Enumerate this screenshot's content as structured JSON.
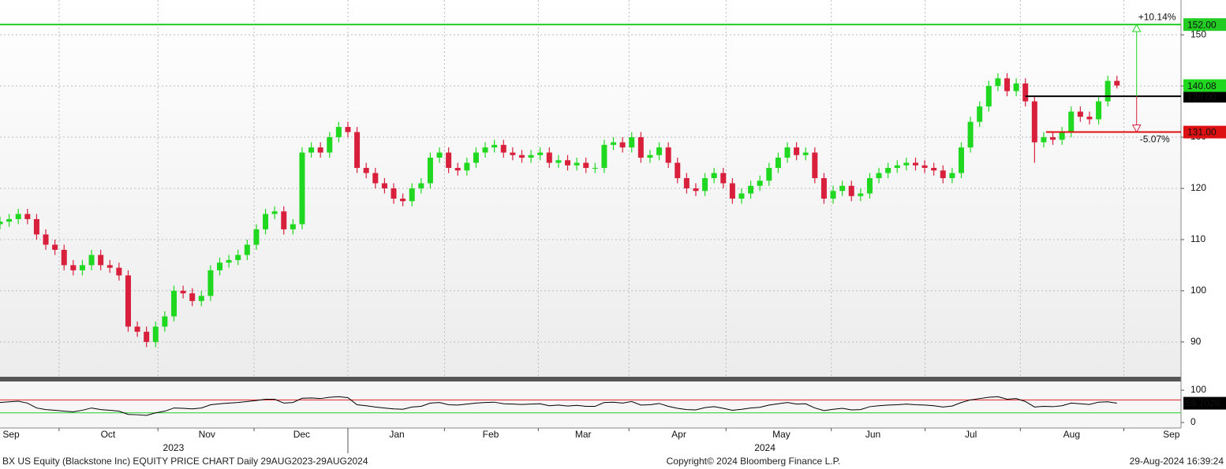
{
  "chart_data": [
    {
      "type": "candlestick",
      "x": [
        0,
        2,
        4,
        6,
        8,
        10,
        12,
        14,
        16,
        18,
        20,
        22,
        24,
        26,
        28,
        30,
        32,
        34,
        36,
        38,
        40,
        42,
        44,
        46,
        48,
        50,
        52,
        54,
        56,
        58,
        60,
        62,
        64,
        66,
        68,
        70,
        72,
        74,
        76,
        78,
        80,
        82,
        84,
        86,
        88,
        90,
        92,
        94,
        96,
        98,
        100,
        102,
        104,
        106,
        108,
        110,
        112,
        114,
        116,
        118,
        120,
        122,
        124,
        126,
        128,
        130,
        132,
        134,
        136,
        138,
        140,
        142,
        144,
        146,
        148,
        150,
        152,
        154,
        156,
        158,
        160,
        162,
        164,
        166,
        168,
        170,
        172,
        174,
        176,
        178,
        180,
        182,
        184,
        186,
        188,
        190,
        192,
        194,
        196,
        198,
        200,
        202,
        204,
        206,
        208,
        210,
        212,
        214,
        216,
        218,
        220,
        222,
        224,
        226,
        228,
        230,
        232,
        234,
        236,
        238,
        240,
        242,
        244
      ],
      "open": [
        113,
        113.5,
        114,
        115,
        114,
        111,
        109,
        108,
        105,
        104,
        105,
        107,
        105,
        104.5,
        103,
        93,
        92,
        90,
        93,
        95,
        100,
        99.5,
        98,
        99,
        104,
        105.5,
        106,
        107,
        109,
        112,
        115,
        115.5,
        112,
        113,
        127,
        128,
        127,
        130,
        132,
        131,
        124,
        123,
        121,
        120,
        118,
        117.5,
        120,
        121,
        126,
        127,
        124,
        123.5,
        125,
        127,
        128,
        128.5,
        127,
        126.5,
        126,
        126.5,
        127,
        125,
        125.5,
        124.5,
        125,
        124,
        124,
        128.5,
        129,
        128,
        130,
        126,
        126.5,
        128,
        125,
        122,
        120,
        119.5,
        122,
        123,
        121,
        118,
        119,
        120.5,
        121.5,
        124,
        126,
        128,
        126.5,
        127,
        122,
        118,
        119.5,
        120.5,
        118.5,
        119,
        122,
        123,
        124,
        124.5,
        125,
        124.5,
        124,
        123.5,
        122,
        123,
        128,
        133,
        136,
        140,
        141.5,
        139,
        140.5,
        137,
        129,
        130,
        129.5,
        131,
        135,
        134,
        133.5,
        137,
        141
      ],
      "high": [
        114.5,
        115,
        116,
        116,
        115,
        112,
        110,
        109,
        106,
        106,
        108,
        108,
        106,
        105.5,
        104,
        94,
        93,
        94,
        96,
        101,
        101,
        100.5,
        100,
        105,
        106.5,
        107,
        108,
        110,
        113,
        116,
        116.5,
        116.5,
        114,
        128,
        129,
        129,
        131,
        133,
        133,
        132,
        125,
        124,
        122,
        121,
        119,
        121,
        122,
        127,
        128,
        128,
        125,
        126,
        128,
        129,
        129.5,
        129.5,
        128,
        127.5,
        127.5,
        128,
        128,
        126.5,
        126.5,
        126,
        126,
        125,
        129.5,
        130,
        130,
        131,
        131,
        127.5,
        129,
        129,
        126,
        123,
        121,
        123,
        124,
        124,
        122,
        120,
        121.5,
        122.5,
        125,
        127,
        129,
        129,
        128,
        128,
        123,
        120.5,
        121.5,
        121.5,
        120,
        123,
        124,
        125,
        125.5,
        126,
        126,
        125.5,
        125,
        124.5,
        124,
        129,
        134,
        137,
        141,
        142.5,
        142.5,
        141.5,
        141.5,
        138,
        131,
        131,
        132,
        136,
        136,
        135,
        138,
        142,
        142
      ],
      "low": [
        112,
        112.5,
        113,
        113,
        110,
        108,
        107,
        104,
        103,
        103,
        104,
        104,
        103.5,
        102,
        92,
        91,
        89,
        89,
        92,
        94,
        98.5,
        97,
        97,
        98,
        103,
        104.5,
        105,
        106,
        108,
        111,
        114,
        111,
        111,
        112,
        126,
        126,
        126,
        129,
        130,
        123,
        122,
        120,
        119,
        117,
        116.5,
        116.5,
        119,
        120,
        125,
        123,
        122.5,
        122.5,
        124,
        126,
        127,
        126,
        125.5,
        125,
        125,
        125.5,
        124,
        124,
        123.5,
        123.5,
        123,
        123,
        123,
        127.5,
        127,
        127,
        125,
        125,
        125.5,
        124,
        121,
        119,
        118.5,
        118.5,
        121,
        120,
        117,
        117,
        118,
        119.5,
        120.5,
        123,
        125,
        125.5,
        125.5,
        121,
        117,
        117,
        118.5,
        117.5,
        117.5,
        118,
        121,
        122,
        123,
        123.5,
        123.5,
        123,
        122.5,
        121,
        121,
        122,
        127,
        132,
        135,
        139,
        138,
        138,
        136,
        125,
        128,
        128.5,
        128.5,
        130,
        133,
        132.5,
        132.5,
        136,
        139.5
      ],
      "close": [
        113.5,
        114,
        115,
        114,
        111,
        109,
        108,
        105,
        104,
        105,
        107,
        105,
        104.5,
        103,
        93,
        92,
        90,
        93,
        95,
        100,
        99.5,
        98,
        99,
        104,
        105.5,
        106,
        107,
        109,
        112,
        115,
        115.5,
        112,
        113,
        127,
        128,
        127,
        130,
        132,
        131,
        124,
        123,
        121,
        120,
        118,
        117.5,
        120,
        121,
        126,
        127,
        124,
        123.5,
        125,
        127,
        128,
        128.5,
        127,
        126.5,
        126,
        126.5,
        127,
        125,
        125.5,
        124.5,
        125,
        124,
        124,
        128.5,
        129,
        128,
        130,
        126,
        126.5,
        128,
        125,
        122,
        120,
        119.5,
        122,
        123,
        121,
        118,
        119,
        120.5,
        121.5,
        124,
        126,
        128,
        126.5,
        127,
        122,
        118,
        119.5,
        120.5,
        118.5,
        119,
        122,
        123,
        124,
        124.5,
        125,
        124.5,
        124,
        123.5,
        122,
        123,
        128,
        133,
        136,
        140,
        141.5,
        139,
        140.5,
        137,
        129,
        130,
        129.5,
        131,
        135,
        134,
        133.5,
        137,
        141,
        140.08
      ],
      "up_color": "#1fd81f",
      "down_color": "#d8203c",
      "xlim": [
        0,
        258
      ],
      "ylim": [
        83.2,
        156.8
      ],
      "yticks": [
        90,
        100,
        110,
        120,
        130,
        140,
        150
      ],
      "xticks": [
        {
          "value": 2.4,
          "label": "Sep"
        },
        {
          "value": 23.6,
          "label": "Oct"
        },
        {
          "value": 45.2,
          "label": "Nov"
        },
        {
          "value": 65.9,
          "label": "Dec"
        },
        {
          "value": 86.7,
          "label": "Jan"
        },
        {
          "value": 107.2,
          "label": "Feb"
        },
        {
          "value": 127.4,
          "label": "Mar"
        },
        {
          "value": 148.3,
          "label": "Apr"
        },
        {
          "value": 170.7,
          "label": "May"
        },
        {
          "value": 190.7,
          "label": "Jun"
        },
        {
          "value": 212.1,
          "label": "Jul"
        },
        {
          "value": 234.1,
          "label": "Aug"
        },
        {
          "value": 255.9,
          "label": "Sep"
        }
      ],
      "xgrid": [
        12.9,
        34.5,
        55.5,
        76,
        97.1,
        117.6,
        137.4,
        158.6,
        181.6,
        202.1,
        222.9,
        245.5
      ],
      "years": [
        {
          "value": 37.9,
          "label": "2023"
        },
        {
          "value": 167.1,
          "label": "2024"
        }
      ],
      "year_break": 76,
      "grid": true,
      "levels": [
        {
          "value": 152,
          "label": "152.00",
          "color": "#22cc22",
          "from_x": 0
        },
        {
          "value": 138,
          "label": "138.00",
          "color": "#000000",
          "from_x": 224
        },
        {
          "value": 131,
          "label": "131.00",
          "color": "#dd1111",
          "from_x": 228.5
        }
      ],
      "last_price": {
        "value": 140.08,
        "label": "140.08"
      },
      "range_arrow": {
        "x": 248.3,
        "from": 138,
        "up_to": 152,
        "down_to": 131,
        "up_label": "+10.14%",
        "down_label": "-5.07%"
      }
    },
    {
      "type": "line",
      "x": [
        0,
        2,
        4,
        6,
        8,
        10,
        12,
        14,
        16,
        18,
        20,
        22,
        24,
        26,
        28,
        30,
        32,
        34,
        36,
        38,
        40,
        42,
        44,
        46,
        48,
        50,
        52,
        54,
        56,
        58,
        60,
        62,
        64,
        66,
        68,
        70,
        72,
        74,
        76,
        78,
        80,
        82,
        84,
        86,
        88,
        90,
        92,
        94,
        96,
        98,
        100,
        102,
        104,
        106,
        108,
        110,
        112,
        114,
        116,
        118,
        120,
        122,
        124,
        126,
        128,
        130,
        132,
        134,
        136,
        138,
        140,
        142,
        144,
        146,
        148,
        150,
        152,
        154,
        156,
        158,
        160,
        162,
        164,
        166,
        168,
        170,
        172,
        174,
        176,
        178,
        180,
        182,
        184,
        186,
        188,
        190,
        192,
        194,
        196,
        198,
        200,
        202,
        204,
        206,
        208,
        210,
        212,
        214,
        216,
        218,
        220,
        222,
        224,
        226,
        228,
        230,
        232,
        234,
        236,
        238,
        240,
        242,
        244
      ],
      "values": [
        62,
        64,
        66,
        60,
        45,
        40,
        38,
        35,
        33,
        38,
        45,
        40,
        38,
        35,
        25,
        24,
        22,
        30,
        35,
        45,
        44,
        42,
        45,
        55,
        58,
        60,
        62,
        65,
        68,
        72,
        72,
        60,
        62,
        75,
        76,
        74,
        78,
        80,
        77,
        55,
        52,
        48,
        45,
        42,
        41,
        48,
        50,
        60,
        62,
        55,
        54,
        57,
        60,
        62,
        63,
        58,
        57,
        56,
        57,
        58,
        52,
        54,
        51,
        53,
        50,
        50,
        62,
        63,
        60,
        65,
        54,
        55,
        59,
        50,
        44,
        40,
        39,
        46,
        49,
        44,
        38,
        41,
        45,
        47,
        54,
        58,
        62,
        57,
        58,
        45,
        37,
        41,
        44,
        39,
        40,
        49,
        52,
        54,
        55,
        57,
        55,
        54,
        52,
        48,
        51,
        62,
        70,
        74,
        78,
        80,
        72,
        74,
        65,
        48,
        50,
        49,
        52,
        60,
        58,
        56,
        63,
        64,
        59.7026
      ],
      "color": "#000000",
      "xlim": [
        0,
        258
      ],
      "ylim": [
        -17,
        122
      ],
      "yticks": [
        0,
        100
      ],
      "levels": [
        {
          "value": 70,
          "color": "#dd2222"
        },
        {
          "value": 30,
          "color": "#22cc22"
        }
      ]
    }
  ],
  "footer": {
    "left": "BX US Equity (Blackstone Inc) EQUITY PRICE CHART  Daily 29AUG2023-29AUG2024",
    "center": "Copyright© 2024 Bloomberg Finance L.P.",
    "right": "29-Aug-2024 16:39:24"
  }
}
